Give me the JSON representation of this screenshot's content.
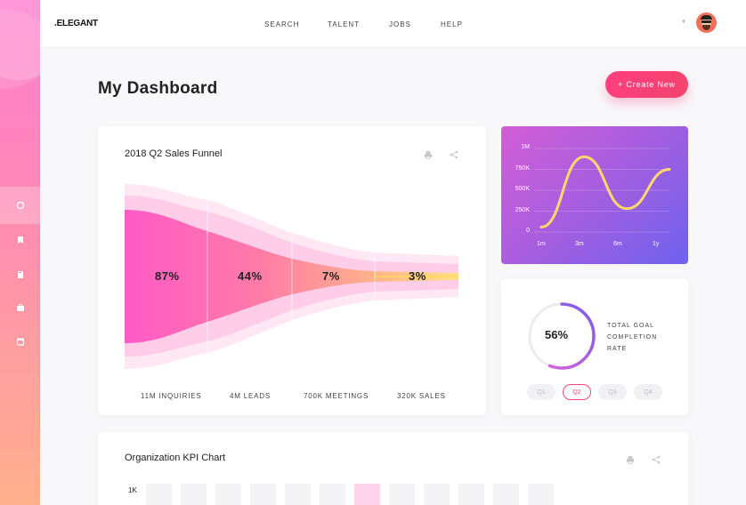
{
  "app": {
    "logo": ".ELEGANT"
  },
  "nav": {
    "items": [
      "SEARCH",
      "TALENT",
      "JOBS",
      "HELP"
    ]
  },
  "page": {
    "title": "My Dashboard",
    "create_button": "+ Create New"
  },
  "funnel": {
    "title": "2018 Q2 Sales Funnel",
    "stages": [
      {
        "pct": "87%",
        "label": "11M INQUIRIES"
      },
      {
        "pct": "44%",
        "label": "4M LEADS"
      },
      {
        "pct": "7%",
        "label": "700K MEETINGS"
      },
      {
        "pct": "3%",
        "label": "320K SALES"
      }
    ]
  },
  "mini_chart": {
    "yticks": [
      "1M",
      "750K",
      "500K",
      "250K",
      "0"
    ],
    "xticks": [
      "1m",
      "3m",
      "6m",
      "1y"
    ]
  },
  "goal": {
    "value_text": "56%",
    "value": 0.56,
    "label": "TOTAL GOAL COMPLETION RATE",
    "quarters": [
      "Q1",
      "Q2",
      "Q3",
      "Q4"
    ],
    "active_quarter": "Q2"
  },
  "kpi": {
    "title": "Organization KPI Chart",
    "ytick": "1K"
  },
  "colors": {
    "accent": "#f5436e",
    "sidebar_top": "#ff7fd0",
    "sidebar_bottom": "#ffb08c",
    "chart_bg_start": "#d35ed6",
    "chart_bg_end": "#6e62ee",
    "chart_line": "#ffd86b"
  },
  "chart_data": [
    {
      "type": "area",
      "title": "2018 Q2 Sales Funnel",
      "categories": [
        "11M INQUIRIES",
        "4M LEADS",
        "700K MEETINGS",
        "320K SALES"
      ],
      "values": [
        87,
        44,
        7,
        3
      ]
    },
    {
      "type": "line",
      "x": [
        "1m",
        "3m",
        "6m",
        "1y"
      ],
      "yticks": [
        "0",
        "250K",
        "500K",
        "750K",
        "1M"
      ],
      "ylim": [
        0,
        1000000
      ],
      "grid": true,
      "series": [
        {
          "values": [
            60000,
            900000,
            280000,
            750000
          ]
        }
      ]
    }
  ]
}
